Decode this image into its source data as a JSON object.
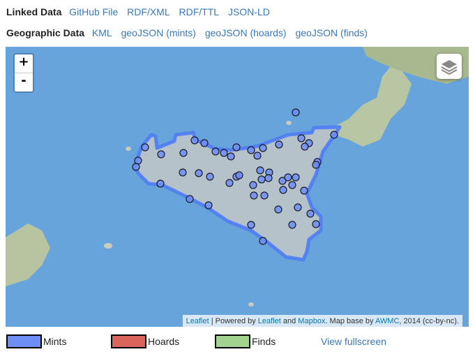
{
  "linked_data": {
    "label": "Linked Data",
    "links": [
      "GitHub File",
      "RDF/XML",
      "RDF/TTL",
      "JSON-LD"
    ]
  },
  "geographic_data": {
    "label": "Geographic Data",
    "links": [
      "KML",
      "geoJSON (mints)",
      "geoJSON (hoards)",
      "geoJSON (finds)"
    ]
  },
  "map": {
    "zoom_in": "+",
    "zoom_out": "-",
    "layers_icon": "layers-icon",
    "attribution": {
      "leaflet1": "Leaflet",
      "sep": " | Powered by ",
      "leaflet2": "Leaflet",
      "and": " and ",
      "mapbox": "Mapbox",
      "base": ". Map base by ",
      "awmc": "AWMC",
      "rest": ", 2014 (cc-by-nc)."
    },
    "colors": {
      "ocean": "#68a4dc",
      "mints": "#6d8ef5",
      "outline": "#4f7cf5"
    }
  },
  "legend": [
    {
      "label": "Mints",
      "color": "#6d8ef5"
    },
    {
      "label": "Hoards",
      "color": "#d9655b"
    },
    {
      "label": "Finds",
      "color": "#a2d490"
    }
  ],
  "view_fullscreen": "View fullscreen"
}
